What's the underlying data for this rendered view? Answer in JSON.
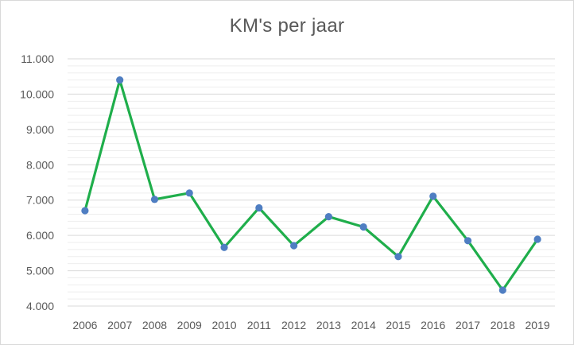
{
  "chart_data": {
    "type": "line",
    "title": "KM's per jaar",
    "xlabel": "",
    "ylabel": "",
    "categories": [
      "2006",
      "2007",
      "2008",
      "2009",
      "2010",
      "2011",
      "2012",
      "2013",
      "2014",
      "2015",
      "2016",
      "2017",
      "2018",
      "2019"
    ],
    "series": [
      {
        "name": "",
        "values": [
          6700,
          10400,
          7020,
          7200,
          5660,
          6780,
          5710,
          6530,
          6240,
          5400,
          7110,
          5850,
          4450,
          5890
        ]
      }
    ],
    "ylim": [
      4000,
      11000
    ],
    "yticks": [
      4000,
      5000,
      6000,
      7000,
      8000,
      9000,
      10000,
      11000
    ],
    "ytick_labels": [
      "4.000",
      "5.000",
      "6.000",
      "7.000",
      "8.000",
      "9.000",
      "10.000",
      "11.000"
    ],
    "minor_gridline_step": 200,
    "grid": true,
    "legend": "none",
    "colors": {
      "line": "#1fae4b",
      "marker": "#4f7ec2",
      "major_grid": "#d9d9d9",
      "minor_grid": "#eeeeee",
      "text": "#595959"
    }
  }
}
